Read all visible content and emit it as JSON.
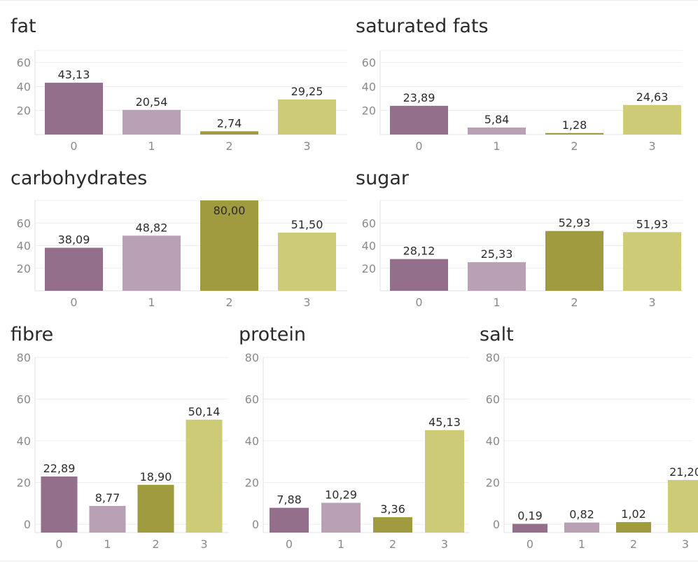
{
  "colors": {
    "cat0": "#936f8c",
    "cat1": "#baa0b5",
    "cat2": "#a09b3e",
    "cat3": "#cdcb76"
  },
  "chart_data": [
    {
      "type": "bar",
      "title": "fat",
      "categories": [
        "0",
        "1",
        "2",
        "3"
      ],
      "values": [
        43.13,
        20.54,
        2.74,
        29.25
      ],
      "value_labels": [
        "43,13",
        "20,54",
        "2,74",
        "29,25"
      ],
      "yticks": [
        "20",
        "40",
        "60"
      ],
      "ytick_values": [
        20,
        40,
        60
      ],
      "ylim": [
        0,
        70
      ],
      "xlabel": "",
      "ylabel": "",
      "grid": true,
      "legend": "none"
    },
    {
      "type": "bar",
      "title": "saturated fats",
      "categories": [
        "0",
        "1",
        "2",
        "3"
      ],
      "values": [
        23.89,
        5.84,
        1.28,
        24.63
      ],
      "value_labels": [
        "23,89",
        "5,84",
        "1,28",
        "24,63"
      ],
      "yticks": [
        "20",
        "40",
        "60"
      ],
      "ytick_values": [
        20,
        40,
        60
      ],
      "ylim": [
        0,
        70
      ],
      "xlabel": "",
      "ylabel": "",
      "grid": true,
      "legend": "none"
    },
    {
      "type": "bar",
      "title": "carbohydrates",
      "categories": [
        "0",
        "1",
        "2",
        "3"
      ],
      "values": [
        38.09,
        48.82,
        80.0,
        51.5
      ],
      "value_labels": [
        "38,09",
        "48,82",
        "80,00",
        "51,50"
      ],
      "yticks": [
        "20",
        "40",
        "60"
      ],
      "ytick_values": [
        20,
        40,
        60
      ],
      "ylim": [
        0,
        80
      ],
      "xlabel": "",
      "ylabel": "",
      "grid": true,
      "legend": "none"
    },
    {
      "type": "bar",
      "title": "sugar",
      "categories": [
        "0",
        "1",
        "2",
        "3"
      ],
      "values": [
        28.12,
        25.33,
        52.93,
        51.93
      ],
      "value_labels": [
        "28,12",
        "25,33",
        "52,93",
        "51,93"
      ],
      "yticks": [
        "20",
        "40",
        "60"
      ],
      "ytick_values": [
        20,
        40,
        60
      ],
      "ylim": [
        0,
        80
      ],
      "xlabel": "",
      "ylabel": "",
      "grid": true,
      "legend": "none"
    },
    {
      "type": "bar",
      "title": "fibre",
      "categories": [
        "0",
        "1",
        "2",
        "3"
      ],
      "values": [
        22.89,
        8.77,
        18.9,
        50.14
      ],
      "value_labels": [
        "22,89",
        "8,77",
        "18,90",
        "50,14"
      ],
      "yticks": [
        "0",
        "20",
        "40",
        "60",
        "80"
      ],
      "ytick_values": [
        0,
        20,
        40,
        60,
        80
      ],
      "ylim": [
        -4,
        80
      ],
      "xlabel": "",
      "ylabel": "",
      "grid": true,
      "legend": "none"
    },
    {
      "type": "bar",
      "title": "protein",
      "categories": [
        "0",
        "1",
        "2",
        "3"
      ],
      "values": [
        7.88,
        10.29,
        3.36,
        45.13
      ],
      "value_labels": [
        "7,88",
        "10,29",
        "3,36",
        "45,13"
      ],
      "yticks": [
        "0",
        "20",
        "40",
        "60",
        "80"
      ],
      "ytick_values": [
        0,
        20,
        40,
        60,
        80
      ],
      "ylim": [
        -4,
        80
      ],
      "xlabel": "",
      "ylabel": "",
      "grid": true,
      "legend": "none"
    },
    {
      "type": "bar",
      "title": "salt",
      "categories": [
        "0",
        "1",
        "2",
        "3"
      ],
      "values": [
        0.19,
        0.82,
        1.02,
        21.2
      ],
      "value_labels": [
        "0,19",
        "0,82",
        "1,02",
        "21,20"
      ],
      "yticks": [
        "0",
        "20",
        "40",
        "60",
        "80"
      ],
      "ytick_values": [
        0,
        20,
        40,
        60,
        80
      ],
      "ylim": [
        -4,
        80
      ],
      "xlabel": "",
      "ylabel": "",
      "grid": true,
      "legend": "none"
    }
  ]
}
